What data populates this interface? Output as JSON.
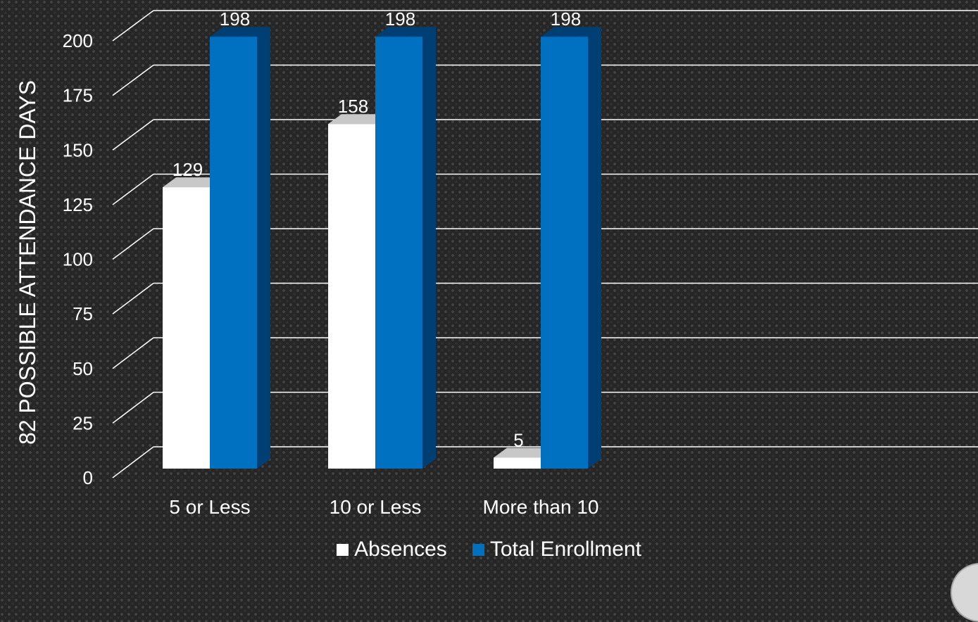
{
  "chart_data": {
    "type": "bar",
    "ylabel": "82 POSSIBLE ATTENDANCE DAYS",
    "xlabel": "",
    "categories": [
      "5 or Less",
      "10 or Less",
      "More than 10"
    ],
    "ylim": [
      0,
      200
    ],
    "yticks": [
      0,
      25,
      50,
      75,
      100,
      125,
      150,
      175,
      200
    ],
    "series": [
      {
        "name": "Absences",
        "values": [
          129,
          158,
          5
        ],
        "color": "#ffffff",
        "shade": "#c8c8c8"
      },
      {
        "name": "Total Enrollment",
        "values": [
          198,
          198,
          198
        ],
        "color": "#0070c0",
        "shade": "#003f73"
      }
    ],
    "data_labels": true,
    "grid": true,
    "legend_position": "bottom",
    "style": "3d-clustered-column"
  },
  "legend": {
    "items": [
      {
        "label": "Absences",
        "color": "#ffffff"
      },
      {
        "label": "Total Enrollment",
        "color": "#0070c0"
      }
    ]
  }
}
